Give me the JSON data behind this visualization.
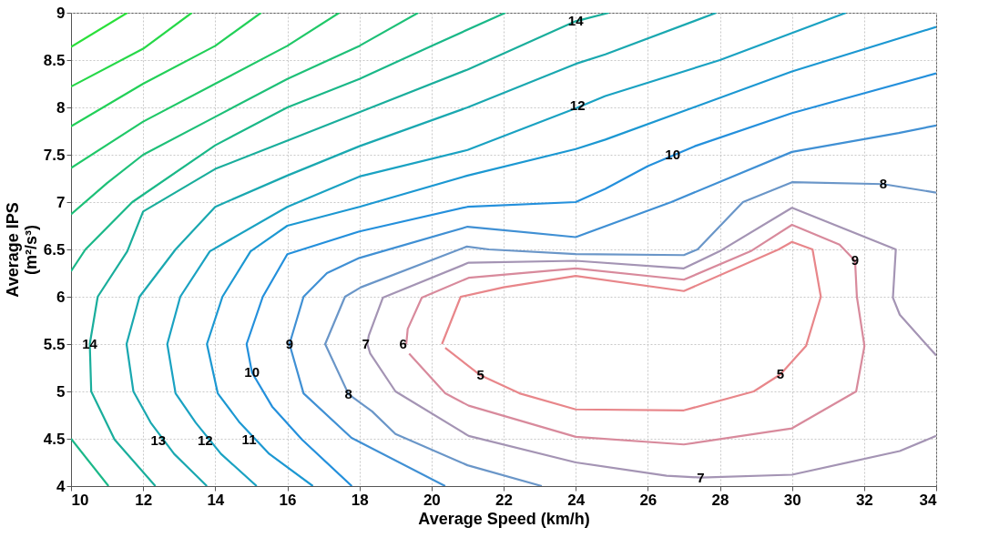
{
  "chart_data": {
    "type": "line",
    "xlabel": "Average Speed (km/h)",
    "ylabel": "Average IPS\n(m²/s³)",
    "xlim": [
      10,
      34
    ],
    "xticks": [
      10,
      12,
      14,
      16,
      18,
      20,
      22,
      24,
      26,
      28,
      30,
      32,
      34
    ],
    "ylim": [
      4,
      9
    ],
    "yticks": [
      4,
      4.5,
      5,
      5.5,
      6,
      6.5,
      7,
      7.5,
      8,
      8.5,
      9
    ],
    "grid": true,
    "legend": false,
    "line_style": "solid",
    "marker": "none",
    "series": [
      {
        "color": "#e8868a",
        "x": [
          20.29,
          20.81,
          22.0,
          24.0,
          27.0,
          29.63,
          30.0,
          30.57,
          30.8,
          30.39,
          29.68,
          28.94,
          27.0,
          24.0,
          22.44,
          21.36,
          20.38
        ],
        "values": [
          5.5,
          6.0,
          6.1,
          6.22,
          6.06,
          6.5,
          6.58,
          6.5,
          6.0,
          5.48,
          5.18,
          5.0,
          4.8,
          4.81,
          4.98,
          5.17,
          5.46
        ]
      },
      {
        "color": "#d88a9c",
        "x": [
          19.3,
          19.34,
          19.73,
          21.03,
          24.0,
          27.0,
          28.85,
          30.0,
          31.32,
          31.75,
          31.8,
          32.01,
          31.78,
          30.0,
          27.0,
          24.0,
          21.03,
          20.38,
          19.38
        ],
        "values": [
          5.5,
          5.66,
          5.99,
          6.2,
          6.3,
          6.18,
          6.48,
          6.76,
          6.55,
          6.38,
          6.0,
          5.48,
          5.0,
          4.61,
          4.44,
          4.52,
          4.85,
          4.98,
          5.4
        ]
      },
      {
        "color": "#a494b4",
        "x": [
          34.0,
          32.99,
          30.0,
          27.47,
          26.52,
          24.0,
          21.03,
          19.0,
          18.3,
          18.22,
          18.26,
          18.65,
          21.03,
          24.0,
          27.0,
          27.99,
          30.0,
          32.88,
          32.8,
          32.99,
          34.0
        ],
        "values": [
          4.53,
          4.37,
          4.12,
          4.09,
          4.11,
          4.25,
          4.53,
          5.0,
          5.4,
          5.5,
          5.59,
          5.99,
          6.36,
          6.38,
          6.3,
          6.48,
          6.94,
          6.5,
          5.99,
          5.81,
          5.38
        ]
      },
      {
        "color": "#6a96c8",
        "x": [
          23.06,
          21.0,
          19.0,
          18.35,
          17.7,
          17.05,
          17.6,
          18.04,
          20.98,
          21.59,
          24.0,
          27.0,
          27.38,
          28.64,
          30.0,
          32.53,
          34.0
        ],
        "values": [
          4.0,
          4.22,
          4.55,
          4.79,
          4.97,
          5.5,
          6.0,
          6.1,
          6.53,
          6.5,
          6.45,
          6.44,
          6.5,
          7.0,
          7.21,
          7.19,
          7.1
        ]
      },
      {
        "color": "#4090d4",
        "x": [
          20.38,
          17.78,
          16.45,
          16.06,
          16.45,
          17.1,
          18.0,
          21.0,
          24.0,
          26.65,
          30.0,
          32.96,
          34.0
        ],
        "values": [
          4.0,
          4.51,
          4.98,
          5.5,
          6.0,
          6.25,
          6.41,
          6.74,
          6.63,
          7.0,
          7.53,
          7.73,
          7.81
        ]
      },
      {
        "color": "#2490dc",
        "x": [
          17.79,
          16.41,
          15.58,
          15.02,
          14.87,
          15.32,
          16.0,
          18.0,
          21.0,
          24.0,
          24.82,
          26.0,
          27.3,
          30.0,
          34.0
        ],
        "values": [
          4.0,
          4.49,
          4.84,
          5.2,
          5.5,
          6.0,
          6.45,
          6.69,
          6.95,
          7.0,
          7.14,
          7.38,
          7.59,
          7.94,
          8.36
        ]
      },
      {
        "color": "#1c98d2",
        "x": [
          16.71,
          15.5,
          14.68,
          14.07,
          13.77,
          14.2,
          14.98,
          16.0,
          18.0,
          21.0,
          24.0,
          24.82,
          30.0,
          34.0
        ],
        "values": [
          4.0,
          4.34,
          4.67,
          4.98,
          5.5,
          6.0,
          6.48,
          6.75,
          6.95,
          7.28,
          7.56,
          7.66,
          8.38,
          8.85
        ]
      },
      {
        "color": "#1aa2c2",
        "x": [
          15.15,
          14.16,
          13.46,
          12.9,
          12.67,
          13.03,
          13.85,
          16.0,
          18.0,
          21.0,
          24.0,
          24.82,
          28.0,
          31.5
        ],
        "values": [
          4.0,
          4.34,
          4.67,
          4.98,
          5.5,
          6.0,
          6.48,
          6.95,
          7.27,
          7.55,
          7.99,
          8.12,
          8.5,
          9.0
        ]
      },
      {
        "color": "#1aa8b0",
        "x": [
          13.77,
          12.86,
          12.21,
          11.73,
          11.54,
          11.9,
          12.9,
          14.0,
          16.0,
          18.0,
          21.0,
          24.0,
          24.82,
          27.9
        ],
        "values": [
          4.0,
          4.34,
          4.67,
          5.0,
          5.5,
          6.0,
          6.5,
          6.95,
          7.28,
          7.59,
          8.0,
          8.46,
          8.56,
          9.0
        ]
      },
      {
        "color": "#1aae9c",
        "x": [
          12.34,
          11.21,
          10.56,
          10.52,
          10.74,
          11.56,
          12.0,
          14.0,
          16.0,
          18.0,
          21.0,
          24.0,
          24.92
        ],
        "values": [
          4.0,
          4.49,
          5.0,
          5.5,
          6.0,
          6.48,
          6.9,
          7.35,
          7.65,
          7.95,
          8.4,
          8.91,
          9.0
        ]
      },
      {
        "color": "#1ab888",
        "x": [
          10.0,
          11.04,
          10.5,
          10.0,
          10.4,
          11.7,
          14.0,
          16.0,
          18.0,
          20.0,
          22.05
        ],
        "values": [
          4.5,
          4.0,
          null,
          6.27,
          6.5,
          7.0,
          7.6,
          8.0,
          8.3,
          8.65,
          9.0
        ]
      },
      {
        "color": "#1ec078",
        "x": [
          10.0,
          11.0,
          12.0,
          14.0,
          16.0,
          18.0,
          19.63
        ],
        "values": [
          6.87,
          7.2,
          7.5,
          7.9,
          8.3,
          8.65,
          9.0
        ]
      },
      {
        "color": "#20c868",
        "x": [
          10.0,
          12.0,
          14.0,
          16.0,
          17.44
        ],
        "values": [
          7.36,
          7.85,
          8.25,
          8.65,
          9.0
        ]
      },
      {
        "color": "#22d058",
        "x": [
          10.0,
          12.0,
          14.0,
          15.27
        ],
        "values": [
          7.8,
          8.25,
          8.65,
          9.0
        ]
      },
      {
        "color": "#26d848",
        "x": [
          10.0,
          12.0,
          13.35
        ],
        "values": [
          8.22,
          8.62,
          9.0
        ]
      },
      {
        "color": "#2ae03a",
        "x": [
          10.0,
          11.56
        ],
        "values": [
          8.64,
          9.0
        ]
      }
    ],
    "annotations": [
      {
        "text": "14",
        "x": 10.52,
        "y": 5.5
      },
      {
        "text": "13",
        "x": 12.42,
        "y": 4.48
      },
      {
        "text": "12",
        "x": 13.72,
        "y": 4.48
      },
      {
        "text": "11",
        "x": 14.94,
        "y": 4.49
      },
      {
        "text": "10",
        "x": 15.02,
        "y": 5.2
      },
      {
        "text": "9",
        "x": 16.06,
        "y": 5.5
      },
      {
        "text": "8",
        "x": 17.7,
        "y": 4.97
      },
      {
        "text": "7",
        "x": 18.18,
        "y": 5.5
      },
      {
        "text": "6",
        "x": 19.21,
        "y": 5.5
      },
      {
        "text": "5",
        "x": 21.36,
        "y": 5.17
      },
      {
        "text": "14",
        "x": 24.0,
        "y": 8.91
      },
      {
        "text": "12",
        "x": 24.05,
        "y": 8.02
      },
      {
        "text": "10",
        "x": 26.69,
        "y": 7.5
      },
      {
        "text": "8",
        "x": 32.53,
        "y": 7.19
      },
      {
        "text": "9",
        "x": 31.75,
        "y": 6.38
      },
      {
        "text": "5",
        "x": 29.68,
        "y": 5.18
      },
      {
        "text": "7",
        "x": 27.47,
        "y": 4.09
      }
    ]
  }
}
